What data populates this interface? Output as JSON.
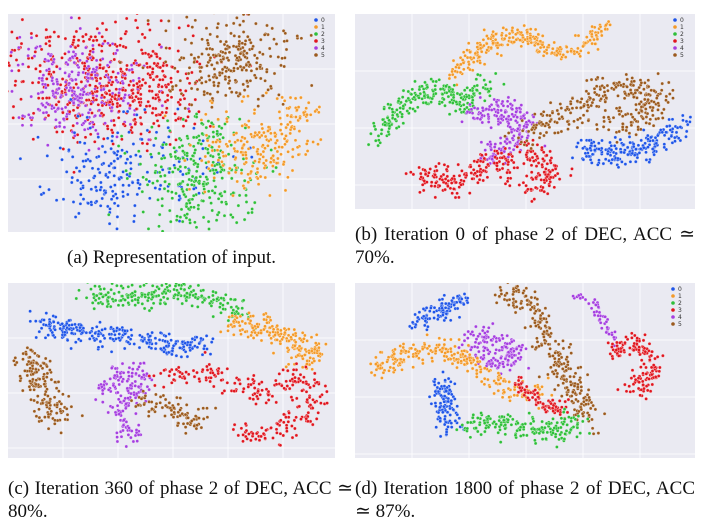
{
  "figure": {
    "legend_labels": [
      "0",
      "1",
      "2",
      "3",
      "4",
      "5"
    ],
    "colors": {
      "0": "#1f55e8",
      "1": "#f39a2a",
      "2": "#2fbf3a",
      "3": "#e0161f",
      "4": "#a53fe0",
      "5": "#9b5a1e",
      "panel_background": "#eaeaf2",
      "grid": "#ffffff"
    },
    "panels": [
      {
        "id": "a",
        "caption": "(a) Representation of input.",
        "show_legend": true
      },
      {
        "id": "b",
        "caption": "(b) Iteration 0 of phase 2 of DEC, ACC ≃ 70%.",
        "show_legend": true
      },
      {
        "id": "c",
        "caption": "(c) Iteration 360 of phase 2 of DEC, ACC ≃ 80%.",
        "show_legend": false
      },
      {
        "id": "d",
        "caption": "(d) Iteration 1800 of phase 2 of DEC, ACC ≃ 87%.",
        "show_legend": true
      }
    ]
  }
}
